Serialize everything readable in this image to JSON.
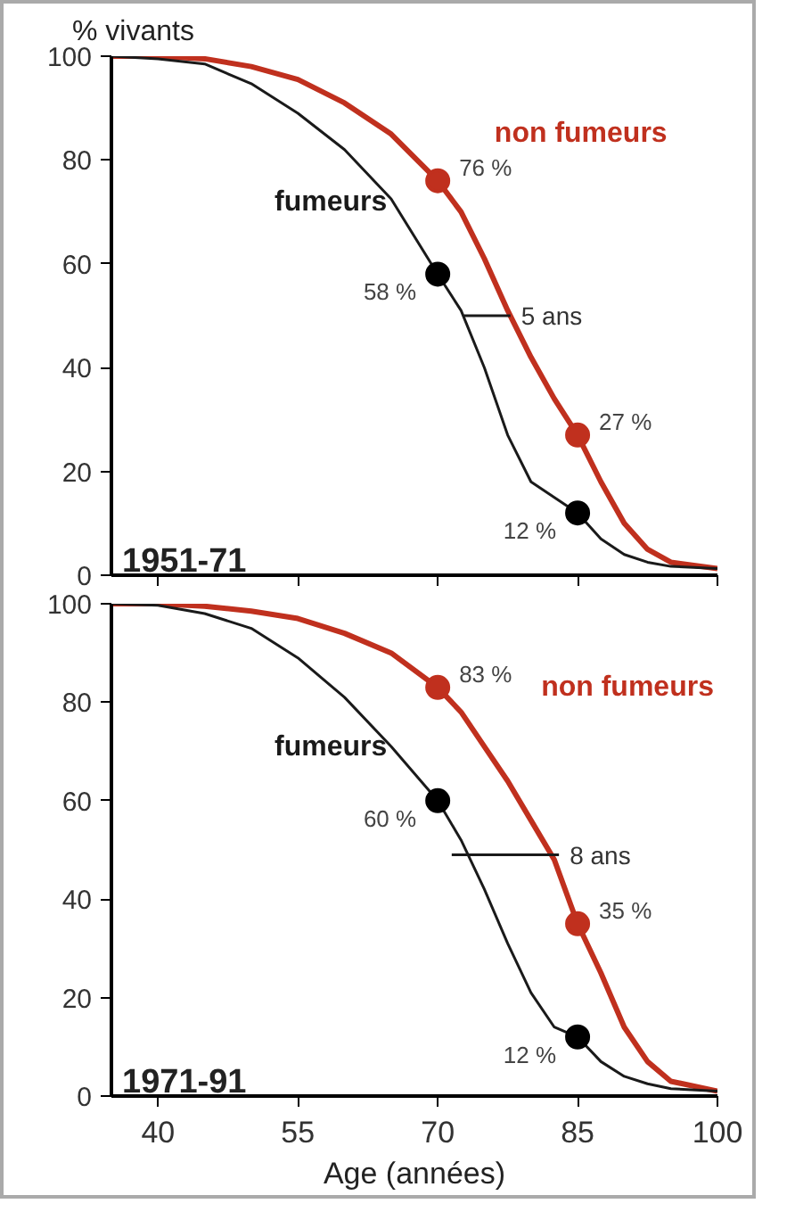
{
  "chart_data": [
    {
      "type": "line",
      "title": "1951-71",
      "ylabel": "% vivants",
      "xlim": [
        35,
        100
      ],
      "xticks": [
        40,
        55,
        70,
        85,
        100
      ],
      "ylim": [
        0,
        100
      ],
      "yticks": [
        0,
        20,
        40,
        60,
        80,
        100
      ],
      "tick_labels": "y",
      "grid": false,
      "line_style": "solid",
      "x": [
        35,
        40,
        45,
        50,
        55,
        60,
        65,
        70,
        72.5,
        75,
        77.5,
        80,
        82.5,
        85,
        87.5,
        90,
        92.5,
        95,
        100
      ],
      "series": [
        {
          "name": "non fumeurs",
          "color": "#c0301e",
          "values": [
            100,
            100,
            99.5,
            98,
            95.5,
            91,
            85,
            76,
            70,
            61,
            51,
            42,
            34,
            27,
            18,
            10,
            5,
            2.5,
            1.3
          ]
        },
        {
          "name": "fumeurs",
          "color": "#1a1a1a",
          "values": [
            100,
            99.5,
            98.5,
            94.7,
            89,
            82,
            72.5,
            58,
            51,
            40,
            27,
            18,
            15,
            12,
            7,
            4,
            2.5,
            1.7,
            1.3
          ]
        },
        {
          "type": "scatter",
          "marker": "circle",
          "color": "#c0301e",
          "x": [
            70,
            85
          ],
          "values": [
            76,
            27
          ],
          "value_labels": [
            "76 %",
            "27 %"
          ]
        },
        {
          "type": "scatter",
          "marker": "circle",
          "color": "#000000",
          "x": [
            70,
            85
          ],
          "values": [
            58,
            12
          ],
          "value_labels": [
            "58 %",
            "12 %"
          ]
        },
        {
          "name": "5 ans",
          "color": "#1a1a1a",
          "x": [
            72.8,
            77.8
          ],
          "values": [
            50,
            50
          ]
        }
      ]
    },
    {
      "type": "line",
      "title": "1971-91",
      "xlabel": "Age (années)",
      "xlim": [
        35,
        100
      ],
      "xticks": [
        40,
        55,
        70,
        85,
        100
      ],
      "ylim": [
        0,
        100
      ],
      "yticks": [
        0,
        20,
        40,
        60,
        80,
        100
      ],
      "grid": false,
      "line_style": "solid",
      "x": [
        35,
        40,
        45,
        50,
        55,
        60,
        65,
        70,
        72.5,
        75,
        77.5,
        80,
        82.5,
        85,
        87.5,
        90,
        92.5,
        95,
        100
      ],
      "series": [
        {
          "name": "non fumeurs",
          "color": "#c0301e",
          "values": [
            100,
            100,
            99.5,
            98.5,
            97,
            94,
            90,
            83,
            78,
            71,
            64,
            56,
            48,
            35,
            25,
            14,
            7,
            3,
            1
          ]
        },
        {
          "name": "fumeurs",
          "color": "#1a1a1a",
          "values": [
            100,
            99.7,
            98,
            95,
            89,
            81,
            71,
            60,
            52,
            42,
            31,
            21,
            14,
            12,
            7,
            4,
            2.5,
            1.5,
            1
          ]
        },
        {
          "type": "scatter",
          "marker": "circle",
          "color": "#c0301e",
          "x": [
            70,
            85
          ],
          "values": [
            83,
            35
          ],
          "value_labels": [
            "83 %",
            "35 %"
          ]
        },
        {
          "type": "scatter",
          "marker": "circle",
          "color": "#000000",
          "x": [
            70,
            85
          ],
          "values": [
            60,
            12
          ],
          "value_labels": [
            "60 %",
            "12 %"
          ]
        },
        {
          "name": "8 ans",
          "color": "#1a1a1a",
          "x": [
            71.5,
            83
          ],
          "values": [
            49,
            49
          ]
        }
      ]
    }
  ]
}
